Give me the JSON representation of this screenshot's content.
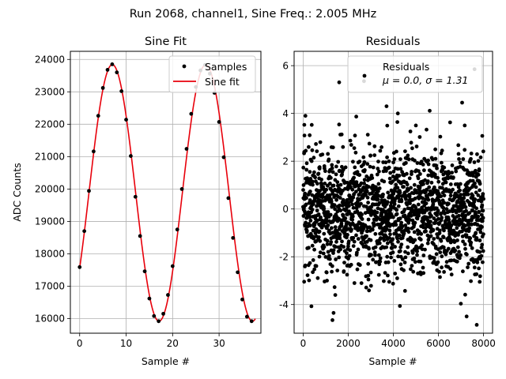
{
  "figure_title": "Run 2068, channel1, Sine Freq.: 2.005 MHz",
  "chart_data": [
    {
      "type": "scatter",
      "title": "Sine Fit",
      "xlabel": "Sample #",
      "ylabel": "ADC Counts",
      "xlim": [
        -2,
        39
      ],
      "ylim": [
        15550,
        24250
      ],
      "xticks": [
        0,
        10,
        20,
        30
      ],
      "yticks": [
        16000,
        17000,
        18000,
        19000,
        20000,
        21000,
        22000,
        23000,
        24000
      ],
      "grid": true,
      "legend_position": "top-right",
      "series": [
        {
          "name": "Samples",
          "marker": "dot",
          "color": "#000000",
          "x": [
            0,
            1,
            2,
            3,
            4,
            5,
            6,
            7,
            8,
            9,
            10,
            11,
            12,
            13,
            14,
            15,
            16,
            17,
            18,
            19,
            20,
            21,
            22,
            23,
            24,
            25,
            26,
            27,
            28,
            29,
            30,
            31,
            32,
            33,
            34,
            35,
            36,
            37
          ],
          "y": [
            17590,
            18700,
            19940,
            21160,
            22260,
            23120,
            23680,
            23850,
            23600,
            23020,
            22140,
            21020,
            19760,
            18550,
            17460,
            16620,
            16080,
            15920,
            16150,
            16730,
            17620,
            18750,
            20000,
            21240,
            22320,
            23150,
            23660,
            23830,
            23560,
            22970,
            22070,
            20980,
            19720,
            18490,
            17430,
            16590,
            16060,
            15920
          ]
        },
        {
          "name": "Sine fit",
          "type": "line",
          "color": "#e8000b",
          "amplitude": 3960,
          "offset": 19880,
          "period": 20.1,
          "phase_sample": 2.0,
          "x_range": [
            0,
            37.8
          ]
        }
      ]
    },
    {
      "type": "scatter",
      "title": "Residuals",
      "xlabel": "Sample #",
      "ylabel": "",
      "xlim": [
        -400,
        8400
      ],
      "ylim": [
        -5.2,
        6.6
      ],
      "xticks": [
        0,
        2000,
        4000,
        6000,
        8000
      ],
      "yticks": [
        -4,
        -2,
        0,
        2,
        4,
        6
      ],
      "grid": true,
      "legend_position": "top-right",
      "series": [
        {
          "name": "Residuals",
          "color": "#000000",
          "count": 8000,
          "mean": 0.0,
          "sigma": 1.31,
          "x_range": [
            0,
            7999
          ],
          "outliers": [
            {
              "x": 7600,
              "y": 5.85
            },
            {
              "x": 1600,
              "y": 5.3
            },
            {
              "x": 2700,
              "y": 5.35
            },
            {
              "x": 7700,
              "y": -4.85
            },
            {
              "x": 7250,
              "y": -4.5
            },
            {
              "x": 1300,
              "y": -4.65
            },
            {
              "x": 1350,
              "y": -4.35
            },
            {
              "x": 100,
              "y": 3.9
            },
            {
              "x": 3700,
              "y": 4.3
            },
            {
              "x": 4200,
              "y": 4.0
            },
            {
              "x": 7050,
              "y": 4.45
            }
          ]
        }
      ],
      "legend": {
        "label": "Residuals",
        "stats_label": "μ = 0.0, σ = 1.31"
      }
    }
  ]
}
